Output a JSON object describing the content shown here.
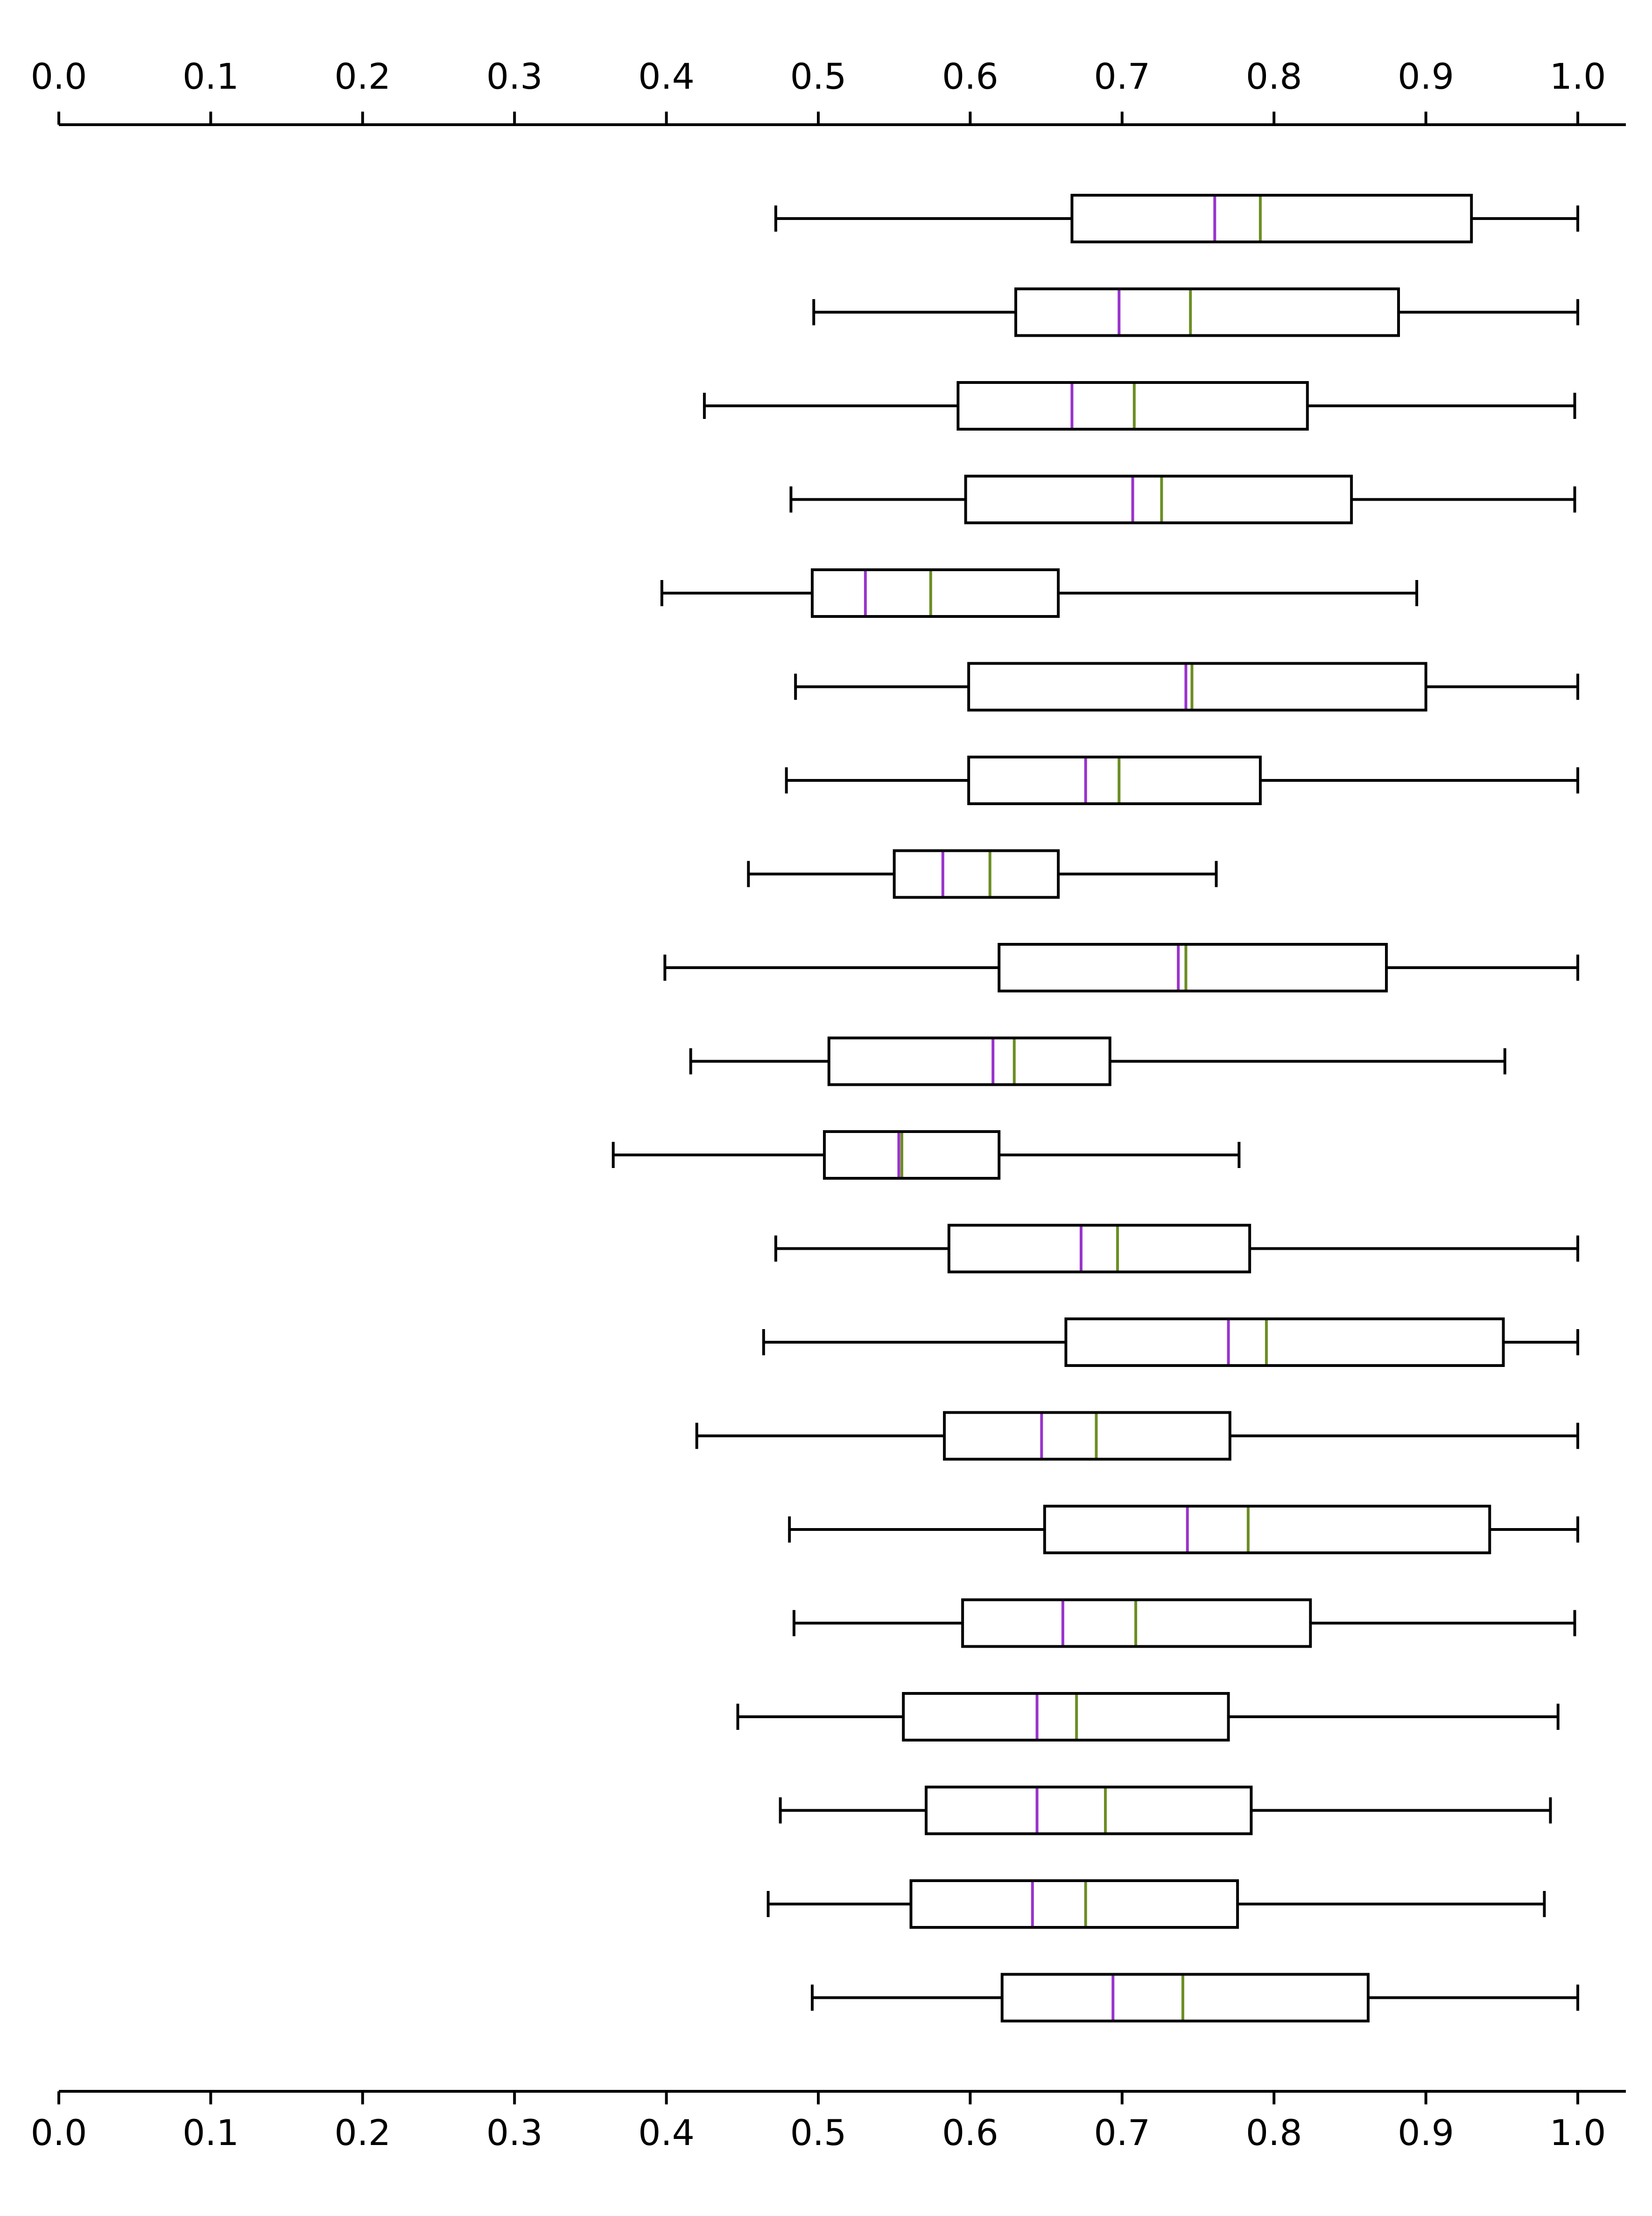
{
  "chart_data": {
    "type": "boxplot",
    "orientation": "horizontal",
    "title": "",
    "xlabel": "",
    "ylabel": "",
    "xlim": [
      0.0,
      1.0
    ],
    "x_ticks": [
      0.0,
      0.1,
      0.2,
      0.3,
      0.4,
      0.5,
      0.6,
      0.7,
      0.8,
      0.9,
      1.0
    ],
    "x_tick_labels": [
      "0.0",
      "0.1",
      "0.2",
      "0.3",
      "0.4",
      "0.5",
      "0.6",
      "0.7",
      "0.8",
      "0.9",
      "1.0"
    ],
    "axes": [
      "top",
      "bottom"
    ],
    "grid": false,
    "legend": "none",
    "colors": {
      "box": "#000000",
      "median_line": "#9933CC",
      "mean_line": "#6B8E23"
    },
    "boxes": [
      {
        "whisker_low": 0.472,
        "q1": 0.667,
        "median": 0.761,
        "mean": 0.791,
        "q3": 0.93,
        "whisker_high": 1.0
      },
      {
        "whisker_low": 0.497,
        "q1": 0.63,
        "median": 0.698,
        "mean": 0.745,
        "q3": 0.882,
        "whisker_high": 1.0
      },
      {
        "whisker_low": 0.425,
        "q1": 0.592,
        "median": 0.667,
        "mean": 0.708,
        "q3": 0.822,
        "whisker_high": 0.998
      },
      {
        "whisker_low": 0.482,
        "q1": 0.597,
        "median": 0.707,
        "mean": 0.726,
        "q3": 0.851,
        "whisker_high": 0.998
      },
      {
        "whisker_low": 0.397,
        "q1": 0.496,
        "median": 0.531,
        "mean": 0.574,
        "q3": 0.658,
        "whisker_high": 0.894
      },
      {
        "whisker_low": 0.485,
        "q1": 0.599,
        "median": 0.742,
        "mean": 0.746,
        "q3": 0.9,
        "whisker_high": 1.0
      },
      {
        "whisker_low": 0.479,
        "q1": 0.599,
        "median": 0.676,
        "mean": 0.698,
        "q3": 0.791,
        "whisker_high": 1.0
      },
      {
        "whisker_low": 0.454,
        "q1": 0.55,
        "median": 0.582,
        "mean": 0.613,
        "q3": 0.658,
        "whisker_high": 0.762
      },
      {
        "whisker_low": 0.399,
        "q1": 0.619,
        "median": 0.737,
        "mean": 0.742,
        "q3": 0.874,
        "whisker_high": 1.0
      },
      {
        "whisker_low": 0.416,
        "q1": 0.507,
        "median": 0.615,
        "mean": 0.629,
        "q3": 0.692,
        "whisker_high": 0.952
      },
      {
        "whisker_low": 0.365,
        "q1": 0.504,
        "median": 0.553,
        "mean": 0.555,
        "q3": 0.619,
        "whisker_high": 0.777
      },
      {
        "whisker_low": 0.472,
        "q1": 0.586,
        "median": 0.673,
        "mean": 0.697,
        "q3": 0.784,
        "whisker_high": 1.0
      },
      {
        "whisker_low": 0.464,
        "q1": 0.663,
        "median": 0.77,
        "mean": 0.795,
        "q3": 0.951,
        "whisker_high": 1.0
      },
      {
        "whisker_low": 0.42,
        "q1": 0.583,
        "median": 0.647,
        "mean": 0.683,
        "q3": 0.771,
        "whisker_high": 1.0
      },
      {
        "whisker_low": 0.481,
        "q1": 0.649,
        "median": 0.743,
        "mean": 0.783,
        "q3": 0.942,
        "whisker_high": 1.0
      },
      {
        "whisker_low": 0.484,
        "q1": 0.595,
        "median": 0.661,
        "mean": 0.709,
        "q3": 0.824,
        "whisker_high": 0.998
      },
      {
        "whisker_low": 0.447,
        "q1": 0.556,
        "median": 0.644,
        "mean": 0.67,
        "q3": 0.77,
        "whisker_high": 0.987
      },
      {
        "whisker_low": 0.475,
        "q1": 0.571,
        "median": 0.644,
        "mean": 0.689,
        "q3": 0.785,
        "whisker_high": 0.982
      },
      {
        "whisker_low": 0.467,
        "q1": 0.561,
        "median": 0.641,
        "mean": 0.676,
        "q3": 0.776,
        "whisker_high": 0.978
      },
      {
        "whisker_low": 0.496,
        "q1": 0.621,
        "median": 0.694,
        "mean": 0.74,
        "q3": 0.862,
        "whisker_high": 1.0
      }
    ]
  }
}
